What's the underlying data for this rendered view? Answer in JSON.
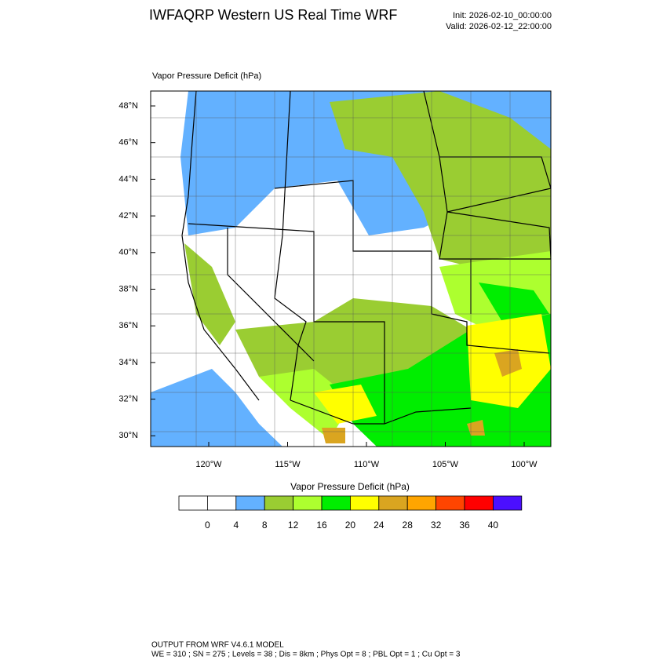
{
  "header": {
    "title": "IWFAQRP Western US Real Time WRF",
    "init": "Init: 2026-02-10_00:00:00",
    "valid": "Valid: 2026-02-12_22:00:00"
  },
  "map": {
    "label": "Vapor Pressure Deficit   (hPa)",
    "lat_labels": [
      "48°N",
      "46°N",
      "44°N",
      "42°N",
      "40°N",
      "38°N",
      "36°N",
      "34°N",
      "32°N",
      "30°N"
    ],
    "lon_labels": [
      "120°W",
      "115°W",
      "110°W",
      "105°W",
      "100°W"
    ]
  },
  "colorbar": {
    "title": "Vapor Pressure Deficit  (hPa)",
    "colors": [
      "#ffffff",
      "#ffffff",
      "#63b1ff",
      "#9acd32",
      "#adff2f",
      "#00ee00",
      "#ffff00",
      "#daa520",
      "#ffa500",
      "#ff4500",
      "#ff0000",
      "#4b0fff"
    ],
    "labels": [
      0,
      4,
      8,
      12,
      16,
      20,
      24,
      28,
      32,
      36,
      40
    ]
  },
  "footer": {
    "line1": "OUTPUT FROM WRF V4.6.1 MODEL",
    "line2": "WE = 310 ; SN = 275 ; Levels = 38 ; Dis = 8km ; Phys Opt = 8 ; PBL Opt = 1 ; Cu Opt = 3"
  }
}
